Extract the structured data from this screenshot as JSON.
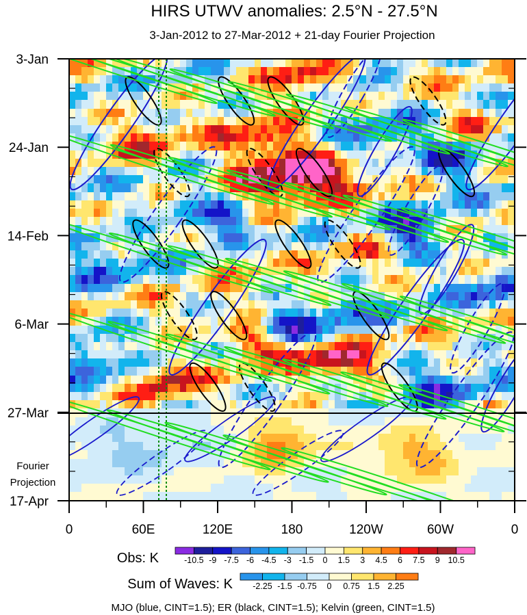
{
  "chart_data": {
    "type": "heatmap",
    "title": "HIRS UTWV anomalies: 2.5°N - 27.5°N",
    "subtitle": "3-Jan-2012 to 27-Mar-2012 + 21-day Fourier Projection",
    "x_axis": {
      "ticks": [
        "0",
        "60E",
        "120E",
        "180",
        "120W",
        "60W",
        "0"
      ],
      "lon_values": [
        0,
        60,
        120,
        180,
        240,
        300,
        360
      ],
      "xlim": [
        0,
        360
      ]
    },
    "y_axis": {
      "ticks": [
        "3-Jan",
        "24-Jan",
        "14-Feb",
        "6-Mar",
        "27-Mar",
        "17-Apr"
      ],
      "day_values": [
        0,
        21,
        42,
        63,
        84,
        105
      ],
      "ylim": [
        0,
        105
      ],
      "projection_label_line1": "Fourier",
      "projection_label_line2": "Projection"
    },
    "projection_start_day": 84,
    "obs_colorbar": {
      "label": "Obs: K",
      "tick_labels": [
        "-10.5",
        "-9",
        "-7.5",
        "-6",
        "-4.5",
        "-3",
        "-1.5",
        "0",
        "1.5",
        "3",
        "4.5",
        "6",
        "7.5",
        "9",
        "10.5"
      ],
      "colors": [
        "#8a2be2",
        "#1e1e9c",
        "#1414c8",
        "#3c64dc",
        "#2894eb",
        "#12b4ec",
        "#96cdf0",
        "#d2ecfa",
        "#fffad2",
        "#ffe66e",
        "#ffb432",
        "#ff7d14",
        "#ff1e14",
        "#c8141e",
        "#a0282d",
        "#ff64c8"
      ]
    },
    "waves_colorbar": {
      "label": "Sum of Waves: K",
      "tick_labels": [
        "-2.25",
        "-1.5",
        "-0.75",
        "0",
        "0.75",
        "1.5",
        "2.25"
      ],
      "colors": [
        "#2894eb",
        "#12b4ec",
        "#96cdf0",
        "#d2ecfa",
        "#fffad2",
        "#ffe66e",
        "#ffb432",
        "#ff7d14"
      ]
    },
    "footer": "MJO (blue, CINT=1.5); ER (black, CINT=1.5); Kelvin (green, CINT=1.5)",
    "contours": {
      "mjo_color": "#1a1acc",
      "er_color": "#000000",
      "kelvin_color": "#22dd22",
      "cint": 1.5
    },
    "anomaly_features": [
      {
        "lon": 185,
        "day": 28,
        "value": 11,
        "lon_width": 55,
        "day_width": 6
      },
      {
        "lon": 155,
        "day": 20,
        "value": 8,
        "lon_width": 40,
        "day_width": 4
      },
      {
        "lon": 190,
        "day": 4,
        "value": 8,
        "lon_width": 35,
        "day_width": 4
      },
      {
        "lon": 150,
        "day": 67,
        "value": 9,
        "lon_width": 30,
        "day_width": 4
      },
      {
        "lon": 218,
        "day": 72,
        "value": 9,
        "lon_width": 30,
        "day_width": 4
      },
      {
        "lon": 80,
        "day": 76,
        "value": 7,
        "lon_width": 20,
        "day_width": 5
      },
      {
        "lon": 60,
        "day": 22,
        "value": 5,
        "lon_width": 25,
        "day_width": 6
      },
      {
        "lon": 170,
        "day": 91,
        "value": 5,
        "lon_width": 25,
        "day_width": 6
      },
      {
        "lon": 280,
        "day": 95,
        "value": 4,
        "lon_width": 35,
        "day_width": 6
      },
      {
        "lon": 325,
        "day": 15,
        "value": 6,
        "lon_width": 25,
        "day_width": 5
      },
      {
        "lon": 140,
        "day": 46,
        "value": 5,
        "lon_width": 25,
        "day_width": 5
      },
      {
        "lon": 240,
        "day": 45,
        "value": 4,
        "lon_width": 30,
        "day_width": 5
      },
      {
        "lon": 275,
        "day": 42,
        "value": -9,
        "lon_width": 25,
        "day_width": 5
      },
      {
        "lon": 130,
        "day": 40,
        "value": -7,
        "lon_width": 20,
        "day_width": 6
      },
      {
        "lon": 175,
        "day": 64,
        "value": -9,
        "lon_width": 20,
        "day_width": 4
      },
      {
        "lon": 310,
        "day": 24,
        "value": -8,
        "lon_width": 30,
        "day_width": 5
      },
      {
        "lon": 300,
        "day": 78,
        "value": -6,
        "lon_width": 30,
        "day_width": 5
      },
      {
        "lon": 100,
        "day": 36,
        "value": -5,
        "lon_width": 25,
        "day_width": 6
      },
      {
        "lon": 30,
        "day": 45,
        "value": -4,
        "lon_width": 30,
        "day_width": 8
      },
      {
        "lon": 250,
        "day": 20,
        "value": -5,
        "lon_width": 30,
        "day_width": 6
      },
      {
        "lon": 20,
        "day": 70,
        "value": -4,
        "lon_width": 25,
        "day_width": 8
      },
      {
        "lon": 345,
        "day": 55,
        "value": -5,
        "lon_width": 20,
        "day_width": 6
      },
      {
        "lon": 220,
        "day": 60,
        "value": -5,
        "lon_width": 25,
        "day_width": 5
      },
      {
        "lon": 230,
        "day": 8,
        "value": -4,
        "lon_width": 30,
        "day_width": 5
      },
      {
        "lon": 60,
        "day": 93,
        "value": -1.5,
        "lon_width": 50,
        "day_width": 8
      }
    ]
  }
}
